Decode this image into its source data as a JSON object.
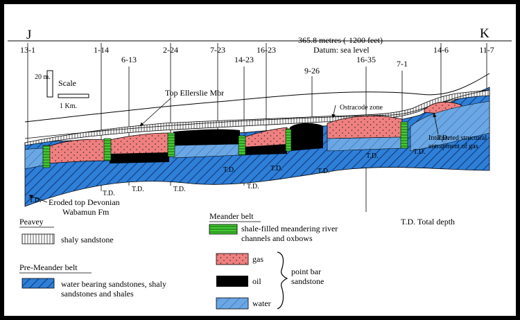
{
  "section_ends": {
    "left": "J",
    "right": "K"
  },
  "datum": {
    "line1": "-365.8 metres (-1200 feet)",
    "line2": "Datum: sea level"
  },
  "wells": [
    "13-1",
    "1-14",
    "6-13",
    "2-24",
    "7-23",
    "14-23",
    "16-23",
    "9-26",
    "16-35",
    "7-1",
    "14-6",
    "11-7"
  ],
  "scale": {
    "vertical": "20 m.",
    "title": "Scale",
    "horizontal": "1 Km."
  },
  "annotations": {
    "top_ellerslie": "Top Ellerslie Mbr",
    "ostracode": "Ostracode zone",
    "structural_1": "Interpreted structural",
    "structural_2": "entrapment of gas",
    "eroded_1": "Eroded top Devonian",
    "eroded_2": "Wabamun Fm",
    "td_marker": "T.D."
  },
  "legend": {
    "peavey": {
      "title": "Peavey",
      "item": "shaly sandstone"
    },
    "pre_meander": {
      "title": "Pre-Meander belt",
      "item_line1": "water bearing sandstones, shaly",
      "item_line2": "sandstones and shales"
    },
    "meander": {
      "title": "Meander belt",
      "item_line1": "shale-filled meandering river",
      "item_line2": "channels and oxbows"
    },
    "point_bar": {
      "items": [
        "gas",
        "oil",
        "water"
      ],
      "label_line1": "point bar",
      "label_line2": "sandstone"
    },
    "td": "T.D. Total depth"
  },
  "colors": {
    "gas": "#f08080",
    "oil": "#000000",
    "water": "#5b9bd5",
    "pre_meander": "#2e7fd8",
    "shale": "#44cc33"
  }
}
